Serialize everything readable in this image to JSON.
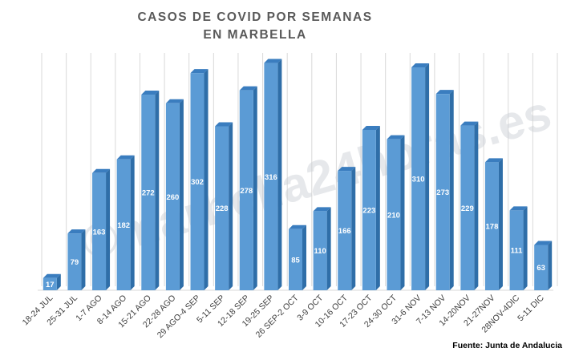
{
  "chart_data": {
    "type": "bar",
    "title": [
      "CASOS DE COVID POR SEMANAS",
      "EN MARBELLA"
    ],
    "categories": [
      "18-24 JUL",
      "25-31 JUL",
      "1-7 AGO",
      "8-14 AGO",
      "15-21 AGO",
      "22-28 AGO",
      "29 AGO-4 SEP",
      "5-11 SEP",
      "12-18 SEP",
      "19-25 SEP",
      "26 SEP-2 OCT",
      "3-9 OCT",
      "10-16 OCT",
      "17-23 OCT",
      "24-30 OCT",
      "31-6 NOV",
      "7-13 NOV",
      "14-20NOV",
      "21-27NOV",
      "28NOV-4DIC",
      "5-11 DIC"
    ],
    "values": [
      17,
      79,
      163,
      182,
      272,
      260,
      302,
      228,
      278,
      316,
      85,
      110,
      166,
      223,
      210,
      310,
      273,
      229,
      178,
      111,
      63
    ],
    "ylim": [
      0,
      330
    ],
    "grid": true,
    "bar_color": "#5b9bd5",
    "bar_side_color": "#2f6ea8",
    "bar_top_color": "#3a7dbf"
  },
  "watermark": "©marbella24horas.es",
  "source": "Fuente: Junta de Andalucia"
}
